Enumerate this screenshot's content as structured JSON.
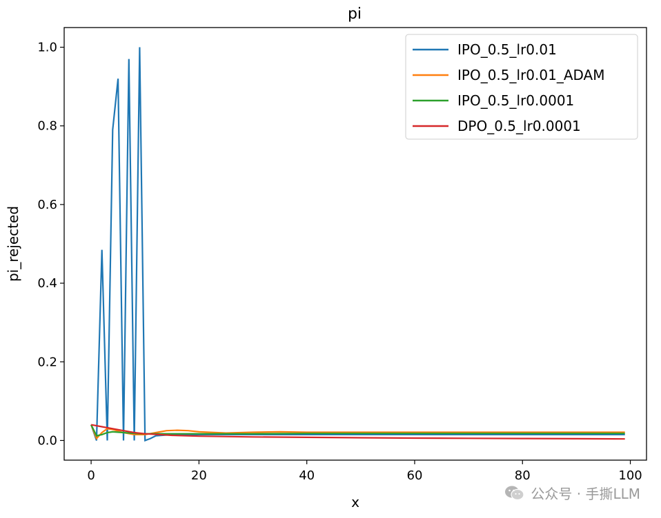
{
  "chart_data": {
    "type": "line",
    "title": "pi",
    "xlabel": "x",
    "ylabel": "pi_rejected",
    "xlim": [
      -5,
      103
    ],
    "ylim": [
      -0.05,
      1.05
    ],
    "xticks": [
      0,
      20,
      40,
      60,
      80,
      100
    ],
    "yticks": [
      0.0,
      0.2,
      0.4,
      0.6,
      0.8,
      1.0
    ],
    "legend_position": "top-right",
    "series": [
      {
        "name": "IPO_0.5_lr0.01",
        "color": "#1f77b4",
        "x": [
          0,
          1,
          2,
          3,
          4,
          5,
          6,
          7,
          8,
          9,
          10,
          11,
          12,
          15,
          20,
          30,
          40,
          50,
          60,
          70,
          80,
          90,
          99
        ],
        "y": [
          0.04,
          0.0,
          0.485,
          0.0,
          0.79,
          0.92,
          0.0,
          0.97,
          0.0,
          1.0,
          0.0,
          0.005,
          0.012,
          0.015,
          0.015,
          0.015,
          0.015,
          0.015,
          0.015,
          0.015,
          0.015,
          0.015,
          0.015
        ]
      },
      {
        "name": "IPO_0.5_lr0.01_ADAM",
        "color": "#ff7f0e",
        "x": [
          0,
          1,
          2,
          3,
          4,
          6,
          8,
          10,
          12,
          14,
          16,
          18,
          20,
          25,
          30,
          35,
          40,
          50,
          60,
          70,
          80,
          90,
          99
        ],
        "y": [
          0.04,
          0.005,
          0.02,
          0.03,
          0.028,
          0.02,
          0.015,
          0.015,
          0.02,
          0.025,
          0.026,
          0.025,
          0.022,
          0.019,
          0.021,
          0.022,
          0.021,
          0.021,
          0.021,
          0.021,
          0.021,
          0.021,
          0.021
        ]
      },
      {
        "name": "IPO_0.5_lr0.0001",
        "color": "#2ca02c",
        "x": [
          0,
          1,
          2,
          3,
          4,
          6,
          8,
          10,
          15,
          20,
          30,
          40,
          50,
          60,
          70,
          80,
          90,
          99
        ],
        "y": [
          0.04,
          0.012,
          0.015,
          0.02,
          0.022,
          0.02,
          0.018,
          0.017,
          0.017,
          0.017,
          0.017,
          0.018,
          0.018,
          0.018,
          0.018,
          0.018,
          0.018,
          0.018
        ]
      },
      {
        "name": "DPO_0.5_lr0.0001",
        "color": "#d62728",
        "x": [
          0,
          2,
          4,
          6,
          8,
          10,
          15,
          20,
          30,
          40,
          50,
          60,
          70,
          80,
          90,
          99
        ],
        "y": [
          0.04,
          0.035,
          0.03,
          0.025,
          0.02,
          0.017,
          0.013,
          0.011,
          0.009,
          0.008,
          0.007,
          0.006,
          0.0055,
          0.005,
          0.0045,
          0.004
        ]
      }
    ]
  },
  "watermark": {
    "text": "公众号 · 手撕LLM",
    "icon": "wechat-icon"
  }
}
